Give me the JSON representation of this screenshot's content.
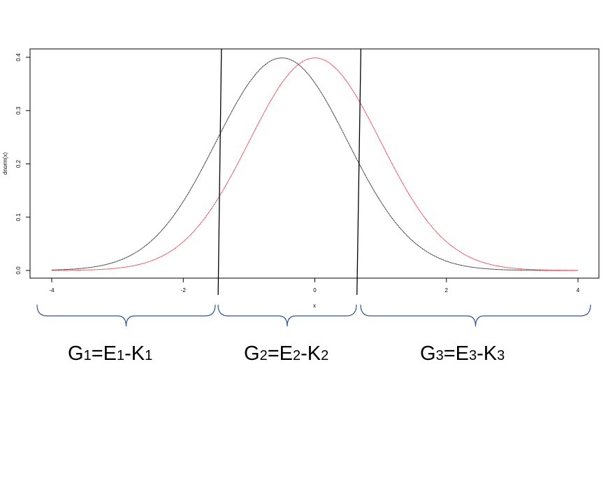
{
  "chart_data": {
    "type": "line",
    "xlabel": "x",
    "ylabel": "dnorm(x)",
    "xlim": [
      -4,
      4
    ],
    "ylim": [
      0,
      0.4
    ],
    "x_ticks": [
      {
        "value": -4,
        "label": "-4"
      },
      {
        "value": -2,
        "label": "-2"
      },
      {
        "value": 0,
        "label": "0"
      },
      {
        "value": 2,
        "label": "2"
      },
      {
        "value": 4,
        "label": "4"
      }
    ],
    "y_ticks": [
      {
        "value": 0.0,
        "label": "0.0"
      },
      {
        "value": 0.1,
        "label": "0.1"
      },
      {
        "value": 0.2,
        "label": "0.2"
      },
      {
        "value": 0.3,
        "label": "0.3"
      },
      {
        "value": 0.4,
        "label": "0.4"
      }
    ],
    "series": [
      {
        "mean": -0.5,
        "sd": 1,
        "color": "#000000"
      },
      {
        "mean": 0,
        "sd": 1,
        "color": "#e8121e"
      }
    ],
    "boundaries": [
      {
        "x_top": -1.42,
        "x_bottom": -1.47
      },
      {
        "x_top": 0.7,
        "x_bottom": 0.64
      }
    ],
    "group_brace_color": "#2f5597"
  },
  "groups": [
    {
      "g": "G",
      "g_sub": "1",
      "eq": "=",
      "e": "E",
      "e_sub": "1",
      "dash": "-",
      "k": "K",
      "k_sub": "1"
    },
    {
      "g": "G",
      "g_sub": "2",
      "eq": "=",
      "e": "E",
      "e_sub": "2",
      "dash": "-",
      "k": "K",
      "k_sub": "2"
    },
    {
      "g": "G",
      "g_sub": "3",
      "eq": "=",
      "e": "E",
      "e_sub": "3",
      "dash": "-",
      "k": "K",
      "k_sub": "3"
    }
  ]
}
